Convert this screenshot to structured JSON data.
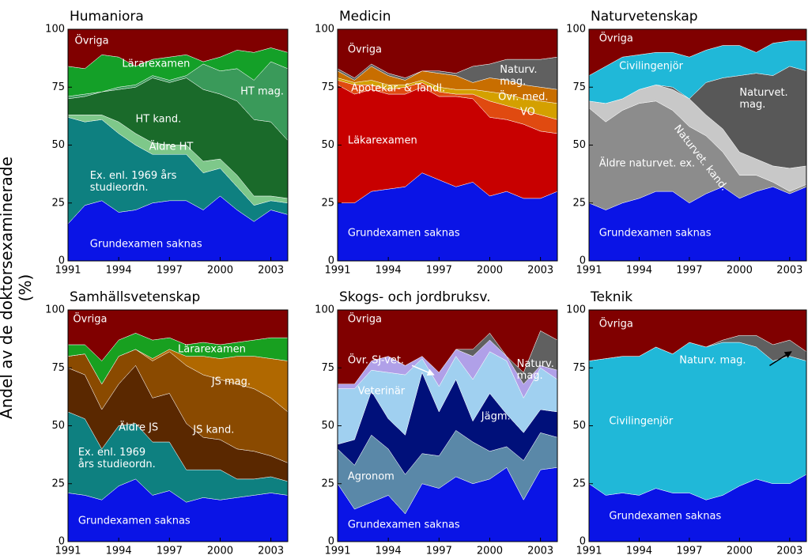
{
  "y_label": "Andel av de doktorsexaminerade (%)",
  "chart_data": [
    {
      "type": "area",
      "stacked": true,
      "title": "Humaniora",
      "x": [
        1991,
        1992,
        1993,
        1994,
        1995,
        1996,
        1997,
        1998,
        1999,
        2000,
        2001,
        2002,
        2003,
        2004
      ],
      "xlim": [
        1991,
        2004
      ],
      "xticks": [
        1991,
        1994,
        1997,
        2000,
        2003
      ],
      "ylim": [
        0,
        100
      ],
      "yticks": [
        0,
        25,
        50,
        75,
        100
      ],
      "series": [
        {
          "name": "Grundexamen saknas",
          "color": "#0a14e6",
          "values": [
            16,
            24,
            26,
            21,
            22,
            25,
            26,
            26,
            22,
            28,
            22,
            17,
            22,
            20
          ]
        },
        {
          "name": "Ex. enl. 1969 års\nstudieordn.",
          "color": "#0e8080",
          "values": [
            46,
            36,
            35,
            34,
            28,
            21,
            20,
            20,
            16,
            12,
            10,
            7,
            4,
            5
          ]
        },
        {
          "name": "Äldre HT",
          "color": "#7ec88a",
          "values": [
            1,
            3,
            2,
            5,
            5,
            5,
            4,
            4,
            5,
            4,
            5,
            4,
            2,
            2
          ]
        },
        {
          "name": "HT kand.",
          "color": "#1a6a2a",
          "values": [
            7,
            8,
            10,
            14,
            20,
            28,
            27,
            29,
            31,
            28,
            32,
            33,
            32,
            25
          ]
        },
        {
          "name": "HT mag.",
          "color": "#3a9a5a",
          "values": [
            1,
            1,
            0,
            1,
            1,
            1,
            1,
            1,
            11,
            10,
            14,
            17,
            26,
            31
          ]
        },
        {
          "name": "Lärarexamen",
          "color": "#14a028",
          "values": [
            13,
            11,
            16,
            13,
            8,
            7,
            10,
            9,
            1,
            6,
            8,
            12,
            6,
            7
          ]
        },
        {
          "name": "Övriga",
          "color": "#800000",
          "values": [
            16,
            17,
            11,
            12,
            16,
            13,
            12,
            11,
            14,
            12,
            9,
            10,
            8,
            10
          ]
        }
      ]
    },
    {
      "type": "area",
      "stacked": true,
      "title": "Medicin",
      "x": [
        1991,
        1992,
        1993,
        1994,
        1995,
        1996,
        1997,
        1998,
        1999,
        2000,
        2001,
        2002,
        2003,
        2004
      ],
      "xlim": [
        1991,
        2004
      ],
      "xticks": [
        1991,
        1994,
        1997,
        2000,
        2003
      ],
      "ylim": [
        0,
        100
      ],
      "yticks": [
        0,
        25,
        50,
        75,
        100
      ],
      "series": [
        {
          "name": "Grundexamen saknas",
          "color": "#0a14e6",
          "values": [
            25,
            25,
            30,
            31,
            32,
            38,
            35,
            32,
            34,
            28,
            30,
            27,
            27,
            30
          ]
        },
        {
          "name": "Läkarexamen",
          "color": "#c80000",
          "values": [
            51,
            47,
            44,
            41,
            40,
            37,
            36,
            39,
            36,
            34,
            31,
            32,
            29,
            25
          ]
        },
        {
          "name": "VO",
          "color": "#e04a10",
          "values": [
            2,
            4,
            2,
            2,
            3,
            2,
            2,
            1,
            2,
            7,
            6,
            6,
            7,
            6
          ]
        },
        {
          "name": "Övr. med.",
          "color": "#d4a000",
          "values": [
            1,
            1,
            2,
            2,
            1,
            1,
            2,
            2,
            2,
            4,
            5,
            5,
            6,
            7
          ]
        },
        {
          "name": "Apotekar- & Tandl.",
          "color": "#c86e00",
          "values": [
            3,
            1,
            6,
            4,
            2,
            4,
            6,
            6,
            3,
            6,
            6,
            6,
            6,
            6
          ]
        },
        {
          "name": "Naturv.\nmag.",
          "color": "#606060",
          "values": [
            1,
            1,
            1,
            1,
            1,
            0,
            1,
            1,
            7,
            6,
            9,
            11,
            12,
            14
          ]
        },
        {
          "name": "Övriga",
          "color": "#800000",
          "values": [
            17,
            21,
            15,
            19,
            21,
            18,
            18,
            19,
            16,
            15,
            13,
            13,
            13,
            12
          ]
        }
      ]
    },
    {
      "type": "area",
      "stacked": true,
      "title": "Naturvetenskap",
      "x": [
        1991,
        1992,
        1993,
        1994,
        1995,
        1996,
        1997,
        1998,
        1999,
        2000,
        2001,
        2002,
        2003,
        2004
      ],
      "xlim": [
        1991,
        2004
      ],
      "xticks": [
        1991,
        1994,
        1997,
        2000,
        2003
      ],
      "ylim": [
        0,
        100
      ],
      "yticks": [
        0,
        25,
        50,
        75,
        100
      ],
      "series": [
        {
          "name": "Grundexamen saknas",
          "color": "#0a14e6",
          "values": [
            25,
            22,
            25,
            27,
            30,
            30,
            25,
            29,
            32,
            27,
            30,
            32,
            29,
            32
          ]
        },
        {
          "name": "Äldre naturvet. ex.",
          "color": "#8c8c8c",
          "values": [
            41,
            38,
            40,
            41,
            39,
            35,
            33,
            25,
            15,
            10,
            7,
            2,
            1,
            1
          ]
        },
        {
          "name": "Naturvet. kand.",
          "color": "#c8c8c8",
          "values": [
            3,
            8,
            5,
            6,
            7,
            9,
            12,
            9,
            10,
            10,
            7,
            7,
            10,
            8
          ]
        },
        {
          "name": "Naturvet.\nmag.",
          "color": "#585858",
          "values": [
            0,
            0,
            0,
            0,
            0,
            1,
            0,
            14,
            22,
            33,
            37,
            39,
            44,
            41
          ]
        },
        {
          "name": "Civilingenjör",
          "color": "#20b8d8",
          "values": [
            11,
            16,
            18,
            15,
            14,
            15,
            18,
            14,
            14,
            13,
            9,
            14,
            11,
            13
          ]
        },
        {
          "name": "Övriga",
          "color": "#800000",
          "values": [
            20,
            16,
            12,
            11,
            10,
            10,
            12,
            9,
            7,
            7,
            10,
            6,
            5,
            5
          ]
        }
      ]
    },
    {
      "type": "area",
      "stacked": true,
      "title": "Samhällsvetenskap",
      "x": [
        1991,
        1992,
        1993,
        1994,
        1995,
        1996,
        1997,
        1998,
        1999,
        2000,
        2001,
        2002,
        2003,
        2004
      ],
      "xlim": [
        1991,
        2004
      ],
      "xticks": [
        1991,
        1994,
        1997,
        2000,
        2003
      ],
      "ylim": [
        0,
        100
      ],
      "yticks": [
        0,
        25,
        50,
        75,
        100
      ],
      "series": [
        {
          "name": "Grundexamen saknas",
          "color": "#0a14e6",
          "values": [
            21,
            20,
            18,
            24,
            27,
            20,
            22,
            17,
            19,
            18,
            19,
            20,
            21,
            20
          ]
        },
        {
          "name": "Ex. enl. 1969\nårs studieordn.",
          "color": "#0e8080",
          "values": [
            35,
            33,
            22,
            26,
            24,
            23,
            21,
            14,
            12,
            13,
            8,
            7,
            7,
            6
          ]
        },
        {
          "name": "Äldre JS",
          "color": "#5a2800",
          "values": [
            19,
            19,
            17,
            18,
            25,
            19,
            21,
            20,
            14,
            13,
            13,
            12,
            9,
            8
          ]
        },
        {
          "name": "JS kand.",
          "color": "#8a4a00",
          "values": [
            5,
            9,
            11,
            12,
            7,
            16,
            18,
            25,
            27,
            26,
            28,
            27,
            25,
            22
          ]
        },
        {
          "name": "JS mag.",
          "color": "#b06800",
          "values": [
            0,
            0,
            0,
            0,
            0,
            1,
            1,
            4,
            8,
            9,
            12,
            14,
            17,
            22
          ]
        },
        {
          "name": "Lärarexamen",
          "color": "#18a020",
          "values": [
            5,
            4,
            10,
            7,
            7,
            8,
            5,
            5,
            6,
            6,
            6,
            7,
            9,
            10
          ]
        },
        {
          "name": "Övriga",
          "color": "#800000",
          "values": [
            15,
            15,
            22,
            13,
            10,
            13,
            12,
            15,
            14,
            15,
            14,
            13,
            12,
            12
          ]
        }
      ]
    },
    {
      "type": "area",
      "stacked": true,
      "title": "Skogs- och jordbruksv.",
      "x": [
        1991,
        1992,
        1993,
        1994,
        1995,
        1996,
        1997,
        1998,
        1999,
        2000,
        2001,
        2002,
        2003,
        2004
      ],
      "xlim": [
        1991,
        2004
      ],
      "xticks": [
        1991,
        1994,
        1997,
        2000,
        2003
      ],
      "ylim": [
        0,
        100
      ],
      "yticks": [
        0,
        25,
        50,
        75,
        100
      ],
      "series": [
        {
          "name": "Grundexamen saknas",
          "color": "#0a14e6",
          "values": [
            25,
            14,
            17,
            20,
            12,
            25,
            23,
            28,
            25,
            27,
            32,
            18,
            31,
            32
          ]
        },
        {
          "name": "Agronom",
          "color": "#5a88a8",
          "values": [
            15,
            19,
            29,
            20,
            17,
            13,
            14,
            20,
            18,
            12,
            9,
            17,
            16,
            13
          ]
        },
        {
          "name": "Jägm.",
          "color": "#00107a",
          "values": [
            2,
            11,
            19,
            13,
            17,
            35,
            19,
            22,
            9,
            25,
            14,
            12,
            10,
            11
          ]
        },
        {
          "name": "Veterinär",
          "color": "#a0d0f0",
          "values": [
            24,
            22,
            9,
            20,
            26,
            6,
            11,
            10,
            18,
            18,
            23,
            15,
            18,
            14
          ]
        },
        {
          "name": "Övr. SJ-vet.",
          "color": "#b0a0e8",
          "values": [
            2,
            2,
            4,
            7,
            4,
            1,
            6,
            3,
            10,
            5,
            2,
            6,
            1,
            4
          ]
        },
        {
          "name": "Naturv.\nmag.",
          "color": "#606060",
          "values": [
            0,
            0,
            0,
            0,
            0,
            0,
            0,
            0,
            3,
            3,
            0,
            5,
            15,
            13
          ]
        },
        {
          "name": "Övriga",
          "color": "#800000",
          "values": [
            32,
            32,
            22,
            20,
            24,
            20,
            27,
            17,
            17,
            10,
            20,
            27,
            9,
            13
          ]
        }
      ]
    },
    {
      "type": "area",
      "stacked": true,
      "title": "Teknik",
      "x": [
        1991,
        1992,
        1993,
        1994,
        1995,
        1996,
        1997,
        1998,
        1999,
        2000,
        2001,
        2002,
        2003,
        2004
      ],
      "xlim": [
        1991,
        2004
      ],
      "xticks": [
        1991,
        1994,
        1997,
        2000,
        2003
      ],
      "ylim": [
        0,
        100
      ],
      "yticks": [
        0,
        25,
        50,
        75,
        100
      ],
      "series": [
        {
          "name": "Grundexamen saknas",
          "color": "#0a14e6",
          "values": [
            25,
            20,
            21,
            20,
            23,
            21,
            21,
            18,
            20,
            24,
            27,
            25,
            25,
            29
          ]
        },
        {
          "name": "Civilingenjör",
          "color": "#20b8d8",
          "values": [
            53,
            59,
            59,
            60,
            61,
            60,
            65,
            66,
            66,
            62,
            57,
            53,
            55,
            49
          ]
        },
        {
          "name": "Naturv. mag.",
          "color": "#606060",
          "values": [
            0,
            0,
            0,
            0,
            0,
            0,
            0,
            0,
            1,
            3,
            5,
            7,
            7,
            4
          ]
        },
        {
          "name": "Övriga",
          "color": "#800000",
          "values": [
            22,
            21,
            20,
            20,
            16,
            19,
            14,
            16,
            13,
            11,
            11,
            15,
            13,
            18
          ]
        }
      ]
    }
  ]
}
